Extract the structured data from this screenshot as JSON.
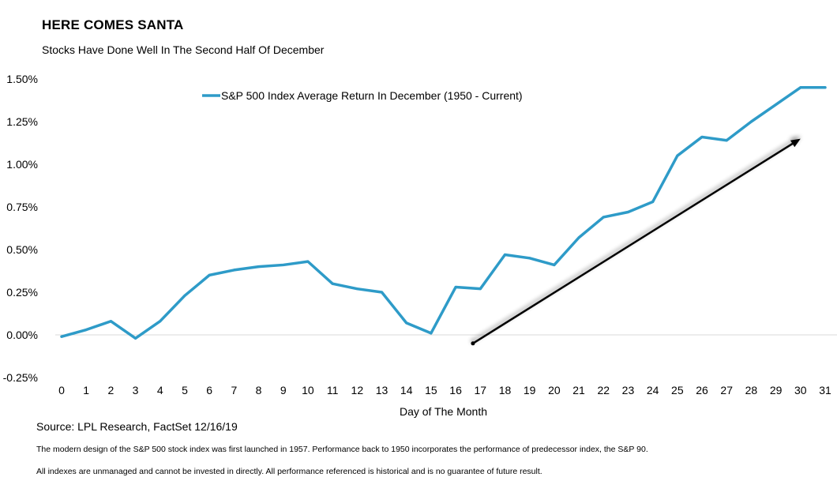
{
  "header": {
    "title": "HERE COMES SANTA",
    "subtitle": "Stocks Have Done Well In The Second Half Of December"
  },
  "footer": {
    "source": "Source: LPL Research, FactSet 12/16/19",
    "note1": "The modern design of the S&P 500 stock index was first launched in 1957. Performance back to 1950 incorporates the performance of predecessor index, the S&P 90.",
    "note2": "All indexes are unmanaged and cannot be invested in directly. All performance referenced is historical and is no guarantee of future result."
  },
  "colors": {
    "series": "#2E9BC8",
    "arrow": "#000000",
    "zero_line": "#d9d9d9"
  },
  "chart_data": {
    "type": "line",
    "title": "HERE COMES SANTA",
    "subtitle": "Stocks Have Done Well In The Second Half Of December",
    "xlabel": "Day of The Month",
    "ylabel": "",
    "x": [
      0,
      1,
      2,
      3,
      4,
      5,
      6,
      7,
      8,
      9,
      10,
      11,
      12,
      13,
      14,
      15,
      16,
      17,
      18,
      19,
      20,
      21,
      22,
      23,
      24,
      25,
      26,
      27,
      28,
      29,
      30,
      31
    ],
    "series": [
      {
        "name": "S&P 500 Index Average Return In December (1950 - Current)",
        "values": [
          -0.01,
          0.03,
          0.08,
          -0.02,
          0.08,
          0.23,
          0.35,
          0.38,
          0.4,
          0.41,
          0.43,
          0.3,
          0.27,
          0.25,
          0.07,
          0.01,
          0.28,
          0.27,
          0.47,
          0.45,
          0.41,
          0.57,
          0.69,
          0.72,
          0.78,
          1.05,
          1.16,
          1.14,
          1.25,
          1.35,
          1.45,
          1.45
        ]
      }
    ],
    "ylim": [
      -0.25,
      1.5
    ],
    "yticks": [
      -0.25,
      0,
      0.25,
      0.5,
      0.75,
      1.0,
      1.25,
      1.5
    ],
    "ytick_labels": [
      "-0.25%",
      "0.00%",
      "0.25%",
      "0.50%",
      "0.75%",
      "1.00%",
      "1.25%",
      "1.50%"
    ],
    "xtick_labels": [
      "0",
      "1",
      "2",
      "3",
      "4",
      "5",
      "6",
      "7",
      "8",
      "9",
      "10",
      "11",
      "12",
      "13",
      "14",
      "15",
      "16",
      "17",
      "18",
      "19",
      "20",
      "21",
      "22",
      "23",
      "24",
      "25",
      "26",
      "27",
      "28",
      "29",
      "30",
      "31"
    ],
    "grid": false,
    "legend": "top-left",
    "annotation": {
      "type": "arrow",
      "from": {
        "x": 16.7,
        "y": -0.05
      },
      "to": {
        "x": 30,
        "y": 1.15
      }
    }
  }
}
